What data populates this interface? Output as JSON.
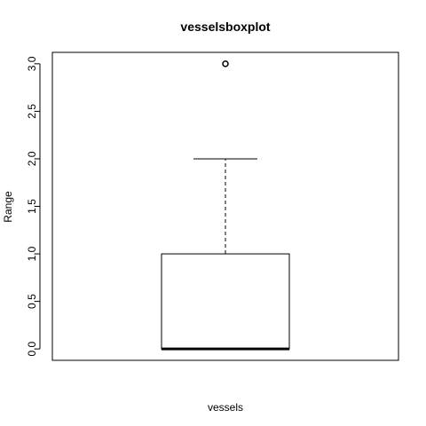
{
  "chart_data": {
    "type": "boxplot",
    "title": "vesselsboxplot",
    "xlabel": "vessels",
    "ylabel": "Range",
    "ylim": [
      -0.12,
      3.12
    ],
    "yticks": [
      0.0,
      0.5,
      1.0,
      1.5,
      2.0,
      2.5,
      3.0
    ],
    "ytick_labels": [
      "0.0",
      "0.5",
      "1.0",
      "1.5",
      "2.0",
      "2.5",
      "3.0"
    ],
    "grid": false,
    "boxes": [
      {
        "min_whisker": 0.0,
        "q1": 0.0,
        "median": 0.0,
        "q3": 1.0,
        "max_whisker": 2.0,
        "outliers": [
          3.0
        ]
      }
    ]
  }
}
